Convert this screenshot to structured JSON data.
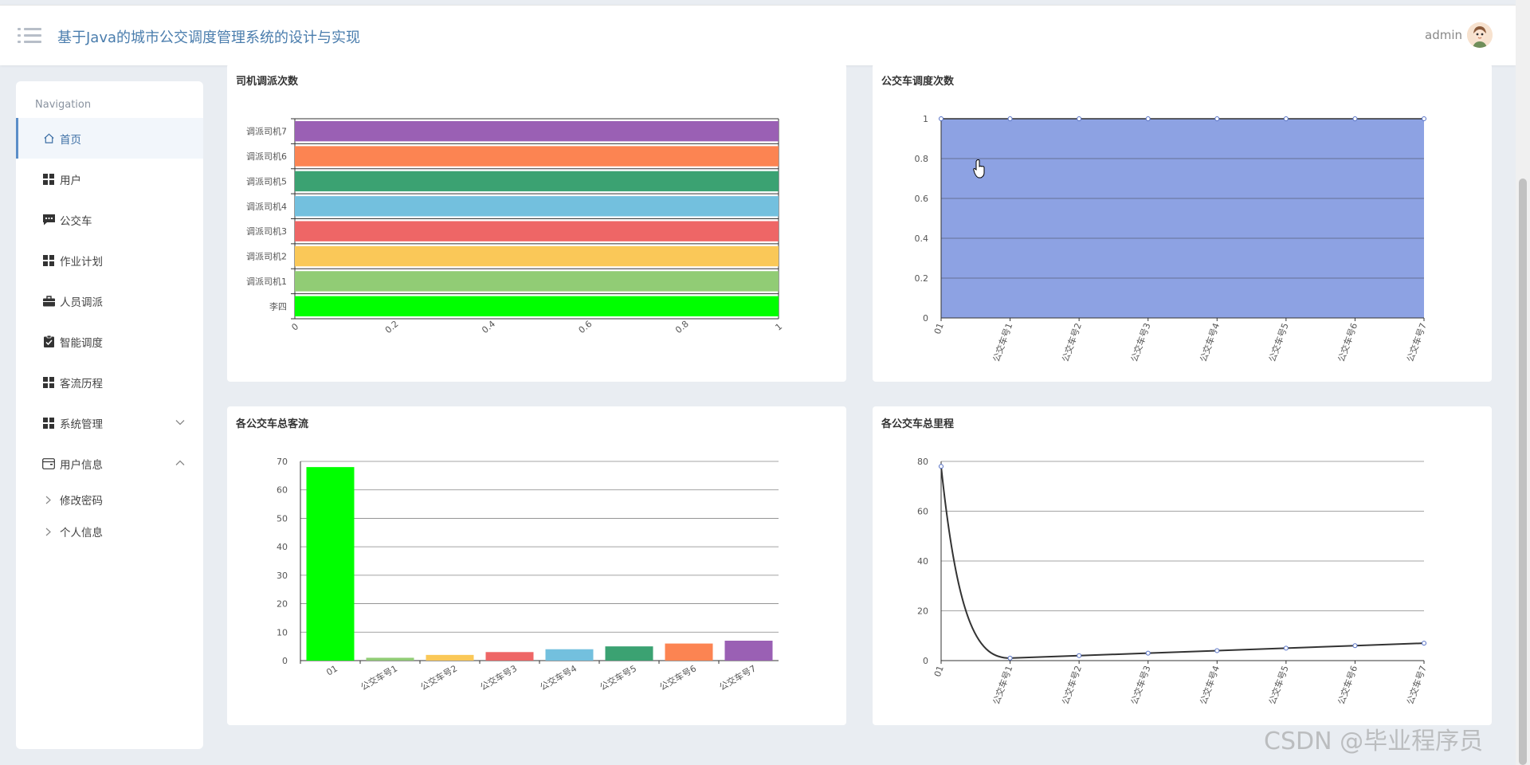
{
  "header": {
    "title": "基于Java的城市公交调度管理系统的设计与实现",
    "username": "admin"
  },
  "sidebar": {
    "nav_title": "Navigation",
    "items": [
      {
        "label": "首页",
        "icon": "home-icon"
      },
      {
        "label": "用户",
        "icon": "grid-icon"
      },
      {
        "label": "公交车",
        "icon": "comment-icon"
      },
      {
        "label": "作业计划",
        "icon": "grid-icon"
      },
      {
        "label": "人员调派",
        "icon": "briefcase-icon"
      },
      {
        "label": "智能调度",
        "icon": "clipboard-check-icon"
      },
      {
        "label": "客流历程",
        "icon": "grid-icon"
      },
      {
        "label": "系统管理",
        "icon": "grid-icon"
      },
      {
        "label": "用户信息",
        "icon": "wallet-icon"
      }
    ],
    "sub_items": [
      {
        "label": "修改密码"
      },
      {
        "label": "个人信息"
      }
    ]
  },
  "watermark": "CSDN @毕业程序员",
  "colors": {
    "accent": "#4a7dad",
    "palette": [
      "#00ff00",
      "#91cc75",
      "#fac858",
      "#ee6666",
      "#73c0de",
      "#3ba272",
      "#fc8452",
      "#9a60b4"
    ],
    "area_fill": "#8da2e3",
    "line": "#333333",
    "point": "#5470c6"
  },
  "chart_data": [
    {
      "type": "bar",
      "orientation": "horizontal",
      "title": "司机调派次数",
      "categories": [
        "李四",
        "调派司机1",
        "调派司机2",
        "调派司机3",
        "调派司机4",
        "调派司机5",
        "调派司机6",
        "调派司机7"
      ],
      "values": [
        1,
        1,
        1,
        1,
        1,
        1,
        1,
        1
      ],
      "xlim": [
        0,
        1
      ],
      "x_ticks": [
        "0",
        "0.2",
        "0.4",
        "0.6",
        "0.8",
        "1"
      ]
    },
    {
      "type": "area",
      "title": "公交车调度次数",
      "categories": [
        "01",
        "公交车号1",
        "公交车号2",
        "公交车号3",
        "公交车号4",
        "公交车号5",
        "公交车号6",
        "公交车号7"
      ],
      "values": [
        1,
        1,
        1,
        1,
        1,
        1,
        1,
        1
      ],
      "ylim": [
        0,
        1
      ],
      "y_ticks": [
        "0",
        "0.2",
        "0.4",
        "0.6",
        "0.8",
        "1"
      ]
    },
    {
      "type": "bar",
      "title": "各公交车总客流",
      "categories": [
        "01",
        "公交车号1",
        "公交车号2",
        "公交车号3",
        "公交车号4",
        "公交车号5",
        "公交车号6",
        "公交车号7"
      ],
      "values": [
        68,
        1,
        2,
        3,
        4,
        5,
        6,
        7
      ],
      "ylim": [
        0,
        70
      ],
      "y_ticks": [
        "0",
        "10",
        "20",
        "30",
        "40",
        "50",
        "60",
        "70"
      ]
    },
    {
      "type": "line",
      "title": "各公交车总里程",
      "categories": [
        "01",
        "公交车号1",
        "公交车号2",
        "公交车号3",
        "公交车号4",
        "公交车号5",
        "公交车号6",
        "公交车号7"
      ],
      "values": [
        78,
        1,
        2,
        3,
        4,
        5,
        6,
        7
      ],
      "ylim": [
        0,
        80
      ],
      "y_ticks": [
        "0",
        "20",
        "40",
        "60",
        "80"
      ]
    }
  ]
}
